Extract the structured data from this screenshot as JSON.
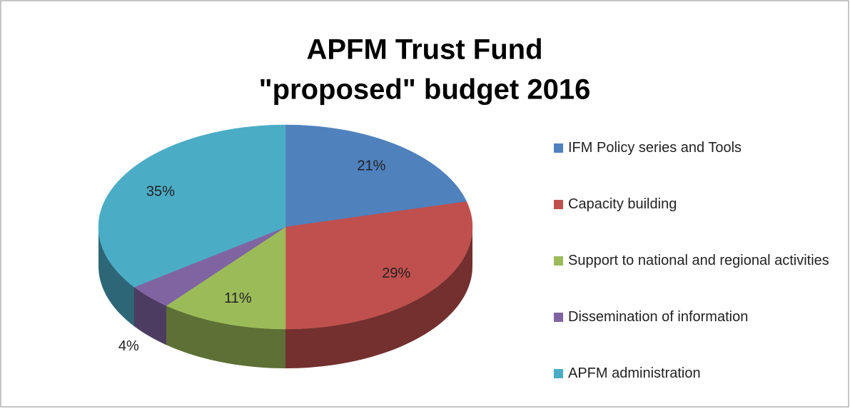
{
  "chart_data": {
    "type": "pie",
    "title": [
      "APFM Trust Fund",
      "\"proposed\" budget 2016"
    ],
    "categories": [
      "IFM Policy series and Tools",
      "Capacity building",
      "Support to national and regional activities",
      "Dissemination of information",
      "APFM administration"
    ],
    "values": [
      21,
      29,
      11,
      4,
      35
    ],
    "value_labels": [
      "21%",
      "29%",
      "11%",
      "4%",
      "35%"
    ],
    "colors": [
      "#4f81bd",
      "#c0504d",
      "#9bbb59",
      "#8064a2",
      "#4bacc6"
    ],
    "legend": "right"
  }
}
